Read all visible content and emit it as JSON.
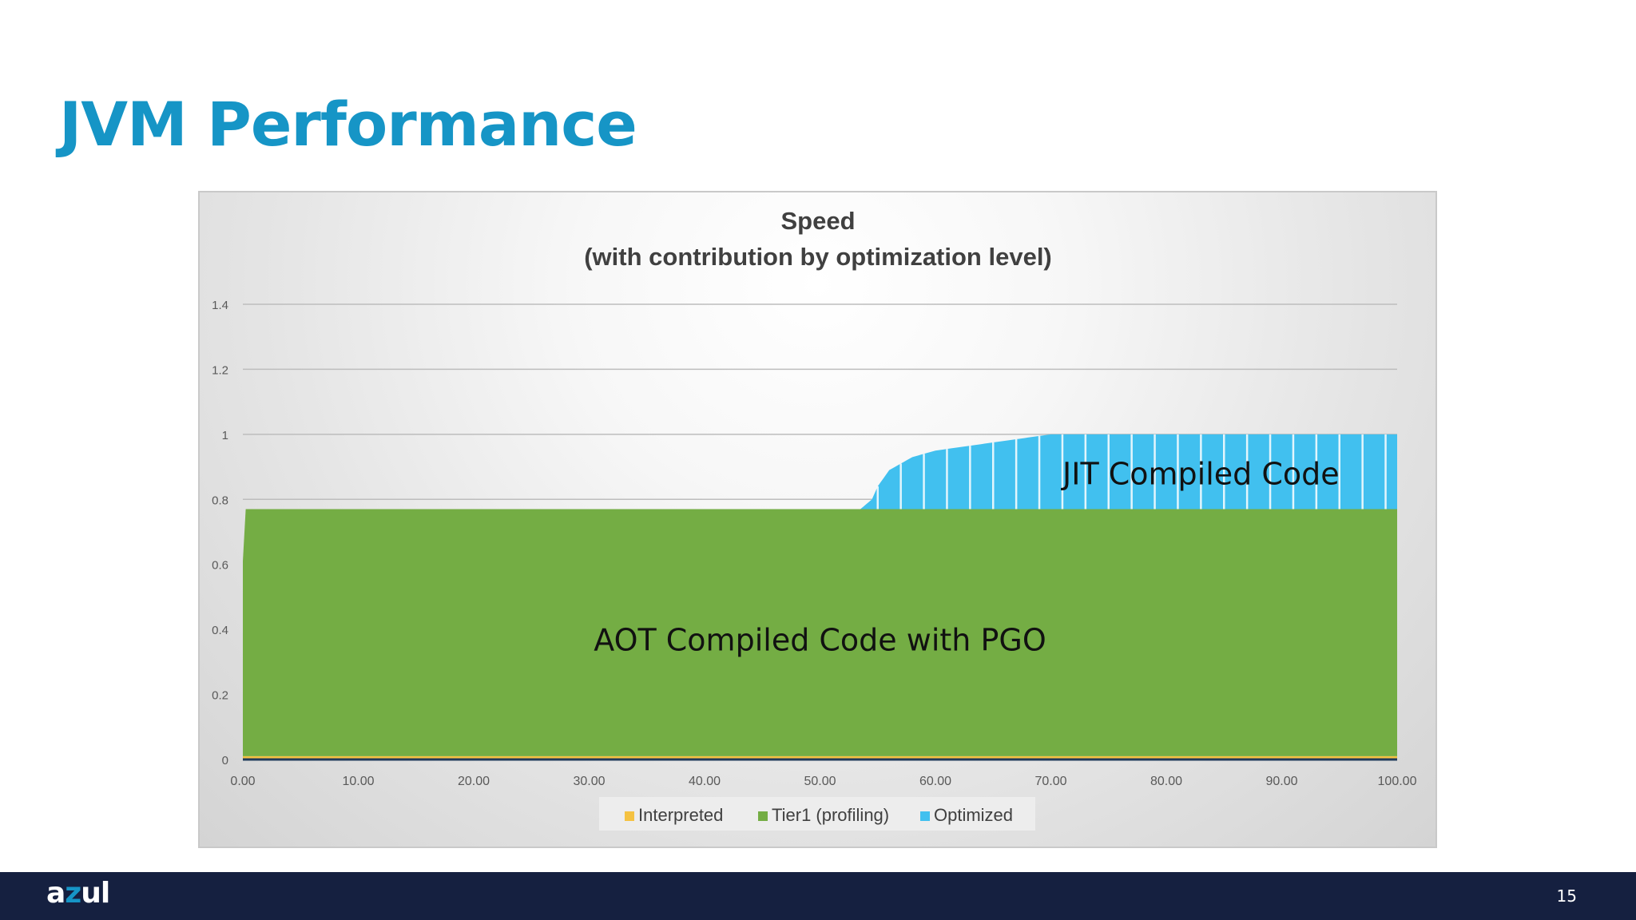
{
  "slide": {
    "title": "JVM Performance",
    "page_number": "15"
  },
  "brand": {
    "logo_a": "a",
    "logo_z": "z",
    "logo_rest": "ul"
  },
  "colors": {
    "title": "#1695c6",
    "footer": "#152040",
    "interpreted": "#f5c242",
    "tier1": "#74ad44",
    "optimized": "#41c0ef"
  },
  "chart_data": {
    "type": "area",
    "title": "Speed",
    "subtitle": "(with contribution by optimization level)",
    "xlim": [
      0,
      100
    ],
    "ylim": [
      0,
      1.4
    ],
    "x_ticks": [
      "0.00",
      "10.00",
      "20.00",
      "30.00",
      "40.00",
      "50.00",
      "60.00",
      "70.00",
      "80.00",
      "90.00",
      "100.00"
    ],
    "y_ticks": [
      "0",
      "0.2",
      "0.4",
      "0.6",
      "0.8",
      "1",
      "1.2",
      "1.4"
    ],
    "grid": true,
    "legend_position": "bottom",
    "stacked": true,
    "series": [
      {
        "name": "Interpreted",
        "color": "#f5c242",
        "x": [
          0,
          100
        ],
        "y": [
          0.01,
          0.01
        ]
      },
      {
        "name": "Tier1 (profiling)",
        "color": "#74ad44",
        "x": [
          0,
          0.2,
          100
        ],
        "y": [
          0.6,
          0.76,
          0.76
        ]
      },
      {
        "name": "Optimized",
        "color": "#41c0ef",
        "x": [
          0,
          53.5,
          54.5,
          55,
          56,
          57,
          58,
          60,
          62,
          64,
          66,
          68,
          70,
          100
        ],
        "y": [
          0,
          0,
          0.03,
          0.07,
          0.12,
          0.14,
          0.16,
          0.18,
          0.19,
          0.2,
          0.21,
          0.22,
          0.23,
          0.23
        ]
      }
    ],
    "annotations": [
      {
        "text": "AOT Compiled Code with PGO",
        "x": 50,
        "y": 0.37
      },
      {
        "text": "JIT Compiled Code",
        "x": 83,
        "y": 0.88
      }
    ]
  }
}
